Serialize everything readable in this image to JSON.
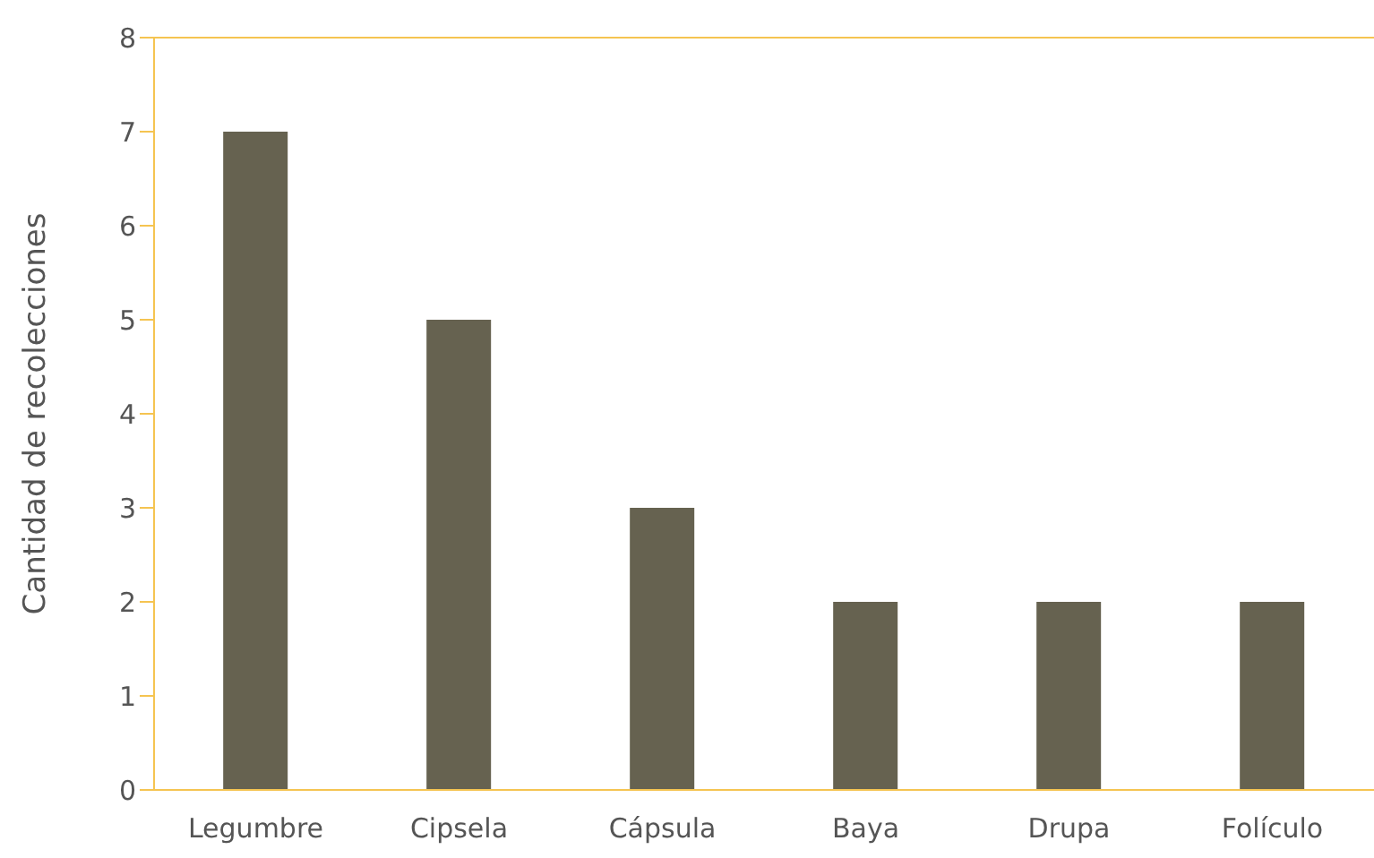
{
  "chart_data": {
    "type": "bar",
    "ylabel": "Cantidad de recolecciones",
    "categories": [
      "Legumbre",
      "Cipsela",
      "Cápsula",
      "Baya",
      "Drupa",
      "Folículo"
    ],
    "values": [
      7,
      5,
      3,
      2,
      2,
      2
    ],
    "color": "#666250",
    "ylim": [
      0,
      8
    ],
    "yticks": [
      0,
      1,
      2,
      3,
      4,
      5,
      6,
      7,
      8
    ],
    "grid": false
  }
}
